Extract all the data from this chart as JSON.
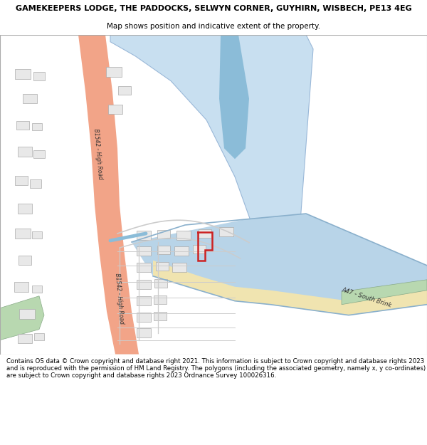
{
  "title": "GAMEKEEPERS LODGE, THE PADDOCKS, SELWYN CORNER, GUYHIRN, WISBECH, PE13 4EG",
  "subtitle": "Map shows position and indicative extent of the property.",
  "footer": "Contains OS data © Crown copyright and database right 2021. This information is subject to Crown copyright and database rights 2023 and is reproduced with the permission of HM Land Registry. The polygons (including the associated geometry, namely x, y co-ordinates) are subject to Crown copyright and database rights 2023 Ordnance Survey 100026316.",
  "bg_color": "#ffffff",
  "road_b1542_color": "#f2a488",
  "road_a47_color": "#f0e4b0",
  "canal_color": "#b8d4e8",
  "canal_edge": "#8ab0cc",
  "green_color": "#b8d8b0",
  "green_edge": "#88aa88",
  "building_fill": "#e8e8e8",
  "building_edge": "#aaaaaa",
  "road_line_color": "#cccccc",
  "blue_field_color": "#c8dff0",
  "blue_field_edge": "#9ab8d8",
  "blue_narrow_color": "#8bbcd8",
  "red_plot_color": "#cc2222",
  "road_label_b1542": "B1542 - High Road",
  "road_label_a47": "A47 - South Brink",
  "label_color": "#333333"
}
